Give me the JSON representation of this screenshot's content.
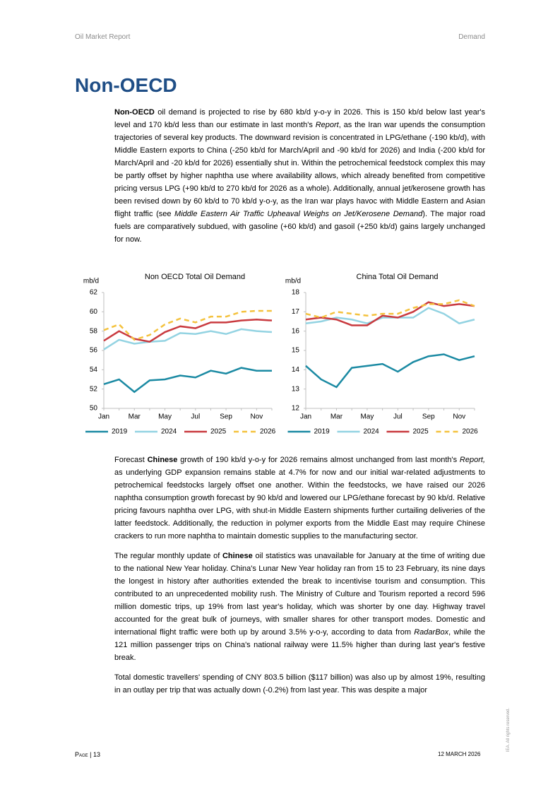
{
  "header": {
    "left": "Oil Market Report",
    "right": "Demand"
  },
  "title": "Non-OECD",
  "paragraphs_top": [
    [
      {
        "text": "Non-OECD",
        "style": "bold"
      },
      {
        "text": " oil demand is projected to rise by 680 kb/d y-o-y in 2026. This is 150 kb/d below last year's level and 170 kb/d less than our estimate in last month's ",
        "style": "regular"
      },
      {
        "text": "Report",
        "style": "italic"
      },
      {
        "text": ", as the Iran war upends the consumption trajectories of several key products. The downward revision is concentrated in LPG/ethane (-190 kb/d), with Middle Eastern exports to China (-250 kb/d for March/April and -90 kb/d for 2026) and India (-200 kb/d for March/April and -20 kb/d for 2026) essentially shut in. Within the petrochemical feedstock complex this may be partly offset by higher naphtha use where availability allows, which already benefited from competitive pricing versus LPG (+90 kb/d to 270 kb/d for 2026 as a whole). Additionally, annual jet/kerosene growth has been revised down by 60 kb/d to 70 kb/d y-o-y, as the Iran war plays havoc with Middle Eastern and Asian flight traffic (see ",
        "style": "regular"
      },
      {
        "text": "Middle Eastern Air Traffic Upheaval Weighs on Jet/Kerosene Demand",
        "style": "italic"
      },
      {
        "text": "). The major road fuels are comparatively subdued, with gasoline (+60 kb/d) and gasoil (+250 kb/d) gains largely unchanged for now.",
        "style": "regular"
      }
    ]
  ],
  "chart_data": [
    {
      "type": "line",
      "title": "Non OECD Total Oil Demand",
      "y_label": "mb/d",
      "categories": [
        "Jan",
        null,
        "Mar",
        null,
        "May",
        null,
        "Jul",
        null,
        "Sep",
        null,
        "Nov",
        null
      ],
      "ylim": [
        50,
        62
      ],
      "yticks": [
        50,
        52,
        54,
        56,
        58,
        60,
        62
      ],
      "legend": "bottom",
      "series": [
        {
          "name": "2019",
          "color": "#1b8aa3",
          "dash": "solid",
          "values": [
            52.5,
            53.0,
            51.7,
            52.9,
            53.0,
            53.4,
            53.2,
            53.9,
            53.6,
            54.2,
            53.9,
            53.9
          ]
        },
        {
          "name": "2024",
          "color": "#93d3e2",
          "dash": "solid",
          "values": [
            56.1,
            57.1,
            56.7,
            56.9,
            57.0,
            57.8,
            57.7,
            58.0,
            57.7,
            58.2,
            58.0,
            57.9
          ]
        },
        {
          "name": "2025",
          "color": "#c93a3f",
          "dash": "solid",
          "values": [
            57.0,
            58.0,
            57.2,
            56.9,
            57.9,
            58.5,
            58.3,
            58.9,
            58.9,
            59.1,
            59.2,
            59.1
          ]
        },
        {
          "name": "2026",
          "color": "#f4c23e",
          "dash": "dashed",
          "values": [
            58.1,
            58.7,
            57.1,
            57.6,
            58.7,
            59.3,
            58.9,
            59.5,
            59.5,
            60.0,
            60.1,
            60.1
          ]
        }
      ]
    },
    {
      "type": "line",
      "title": "China Total Oil Demand",
      "y_label": "mb/d",
      "categories": [
        "Jan",
        null,
        "Mar",
        null,
        "May",
        null,
        "Jul",
        null,
        "Sep",
        null,
        "Nov",
        null
      ],
      "ylim": [
        12,
        18
      ],
      "yticks": [
        12,
        13,
        14,
        15,
        16,
        17,
        18
      ],
      "legend": "bottom",
      "series": [
        {
          "name": "2019",
          "color": "#1b8aa3",
          "dash": "solid",
          "values": [
            14.2,
            13.5,
            13.1,
            14.1,
            14.2,
            14.3,
            13.9,
            14.4,
            14.7,
            14.8,
            14.5,
            14.7
          ]
        },
        {
          "name": "2024",
          "color": "#93d3e2",
          "dash": "solid",
          "values": [
            16.4,
            16.5,
            16.7,
            16.6,
            16.4,
            16.7,
            16.7,
            16.7,
            17.2,
            16.9,
            16.4,
            16.6
          ]
        },
        {
          "name": "2025",
          "color": "#c93a3f",
          "dash": "solid",
          "values": [
            16.6,
            16.7,
            16.6,
            16.3,
            16.3,
            16.8,
            16.7,
            17.0,
            17.5,
            17.3,
            17.4,
            17.3
          ]
        },
        {
          "name": "2026",
          "color": "#f4c23e",
          "dash": "dashed",
          "values": [
            16.9,
            16.7,
            17.0,
            16.9,
            16.8,
            16.9,
            16.9,
            17.2,
            17.4,
            17.4,
            17.6,
            17.3
          ]
        }
      ]
    }
  ],
  "paragraphs_bottom": [
    [
      {
        "text": "Forecast ",
        "style": "regular"
      },
      {
        "text": "Chinese",
        "style": "bold"
      },
      {
        "text": " growth of 190 kb/d y-o-y for 2026 remains almost unchanged from last month's ",
        "style": "regular"
      },
      {
        "text": "Report,",
        "style": "italic"
      },
      {
        "text": " as underlying GDP expansion remains stable at 4.7% for now and our initial war-related adjustments to petrochemical feedstocks largely offset one another. Within the feedstocks, we have raised our 2026 naphtha consumption growth forecast by 90 kb/d and lowered our LPG/ethane forecast by 90 kb/d. Relative pricing favours naphtha over LPG, with shut-in Middle Eastern shipments further curtailing deliveries of the latter feedstock. Additionally, the reduction in polymer exports from the Middle East may require Chinese crackers to run more naphtha to maintain domestic supplies to the manufacturing sector.",
        "style": "regular"
      }
    ],
    [
      {
        "text": "The regular monthly update of ",
        "style": "regular"
      },
      {
        "text": "Chinese",
        "style": "bold"
      },
      {
        "text": " oil statistics was unavailable for January at the time of writing due to the national New Year holiday. China's Lunar New Year holiday ran from 15 to 23 February, its nine days the longest in history after authorities extended the break to incentivise tourism and consumption. This contributed to an unprecedented mobility rush. The Ministry of Culture and Tourism reported a record 596 million domestic trips, up 19% from last year's holiday, which was shorter by one day. Highway travel accounted for the great bulk of journeys, with smaller shares for other transport modes. Domestic and international flight traffic were both up by around 3.5% y-o-y, according to data from ",
        "style": "regular"
      },
      {
        "text": "RadarBox",
        "style": "italic"
      },
      {
        "text": ", while the 121 million passenger trips on China's national railway were 11.5% higher than during last year's festive break.",
        "style": "regular"
      }
    ],
    [
      {
        "text": "Total domestic travellers' spending of CNY 803.5 billion ($117 billion) was also up by almost 19%, resulting in an outlay per trip that was actually down (-0.2%) from last year. This was despite a major",
        "style": "regular"
      }
    ]
  ],
  "footer": {
    "page": "Page | 13",
    "date": "12 MARCH 2026",
    "rights": "IEA. All rights reserved."
  }
}
